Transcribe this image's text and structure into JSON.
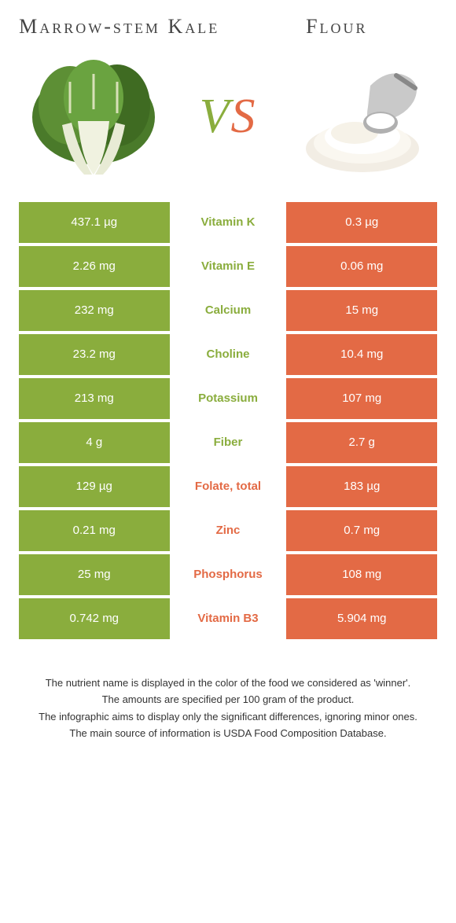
{
  "colors": {
    "green": "#8aad3d",
    "orange": "#e36a45",
    "text": "#333333",
    "white": "#ffffff"
  },
  "food_left": {
    "title": "Marrow-stem Kale"
  },
  "food_right": {
    "title": "Flour"
  },
  "vs_label": {
    "v": "V",
    "s": "S"
  },
  "rows": [
    {
      "left": "437.1 µg",
      "name": "Vitamin K",
      "right": "0.3 µg",
      "winner": "left"
    },
    {
      "left": "2.26 mg",
      "name": "Vitamin E",
      "right": "0.06 mg",
      "winner": "left"
    },
    {
      "left": "232 mg",
      "name": "Calcium",
      "right": "15 mg",
      "winner": "left"
    },
    {
      "left": "23.2 mg",
      "name": "Choline",
      "right": "10.4 mg",
      "winner": "left"
    },
    {
      "left": "213 mg",
      "name": "Potassium",
      "right": "107 mg",
      "winner": "left"
    },
    {
      "left": "4 g",
      "name": "Fiber",
      "right": "2.7 g",
      "winner": "left"
    },
    {
      "left": "129 µg",
      "name": "Folate, total",
      "right": "183 µg",
      "winner": "right"
    },
    {
      "left": "0.21 mg",
      "name": "Zinc",
      "right": "0.7 mg",
      "winner": "right"
    },
    {
      "left": "25 mg",
      "name": "Phosphorus",
      "right": "108 mg",
      "winner": "right"
    },
    {
      "left": "0.742 mg",
      "name": "Vitamin B3",
      "right": "5.904 mg",
      "winner": "right"
    }
  ],
  "footer": {
    "line1": "The nutrient name is displayed in the color of the food we considered as 'winner'.",
    "line2": "The amounts are specified per 100 gram of the product.",
    "line3": "The infographic aims to display only the significant differences, ignoring minor ones.",
    "line4": "The main source of information is USDA Food Composition Database."
  }
}
